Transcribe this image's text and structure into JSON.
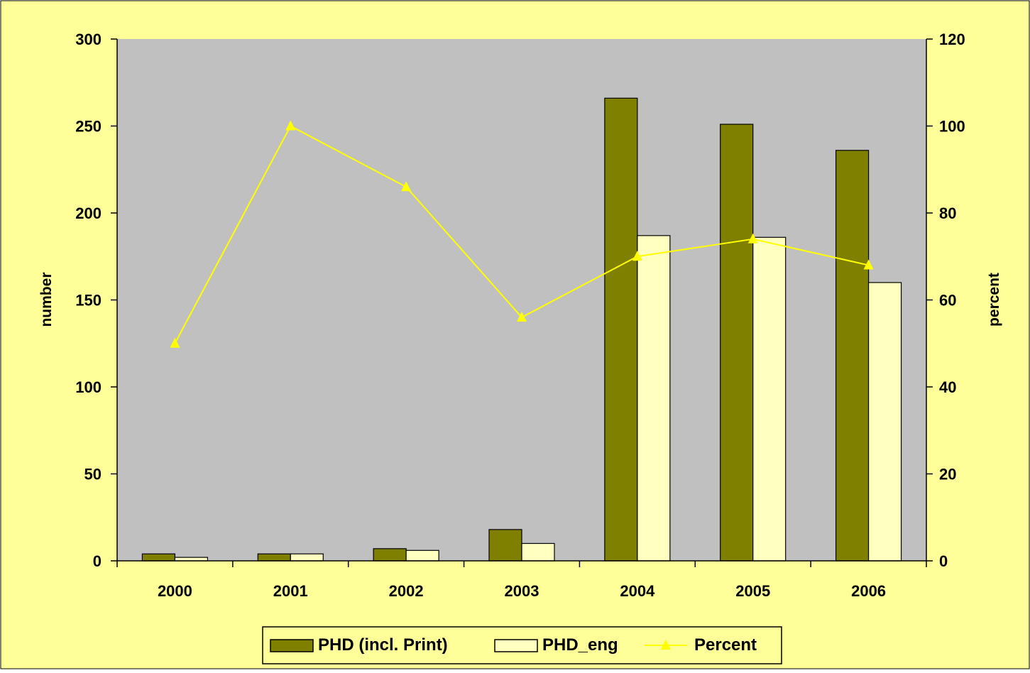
{
  "colors": {
    "page_background": "#FFFF99",
    "plot_background": "#C0C0C0",
    "bar_series_1": "#808000",
    "bar_series_2": "#FFFFC0",
    "line_series": "#FFFF00",
    "axis": "#000000"
  },
  "chart_data": {
    "type": "bar",
    "combo": "bar+line",
    "categories": [
      "2000",
      "2001",
      "2002",
      "2003",
      "2004",
      "2005",
      "2006"
    ],
    "series": [
      {
        "name": "PHD (incl. Print)",
        "type": "bar",
        "axis": "left",
        "values": [
          4,
          4,
          7,
          18,
          266,
          251,
          236
        ]
      },
      {
        "name": "PHD_eng",
        "type": "bar",
        "axis": "left",
        "values": [
          2,
          4,
          6,
          10,
          187,
          186,
          160
        ]
      },
      {
        "name": "Percent",
        "type": "line",
        "axis": "right",
        "marker": "triangle",
        "values": [
          50,
          100,
          86,
          56,
          70,
          74,
          68
        ]
      }
    ],
    "title": "",
    "xlabel": "",
    "ylabel": "number",
    "y2label": "percent",
    "ylim": [
      0,
      300
    ],
    "y2lim": [
      0,
      120
    ],
    "yticks": [
      "0",
      "50",
      "100",
      "150",
      "200",
      "250",
      "300"
    ],
    "y2ticks": [
      "0",
      "20",
      "40",
      "60",
      "80",
      "100",
      "120"
    ],
    "grid": false,
    "legend_position": "bottom"
  }
}
